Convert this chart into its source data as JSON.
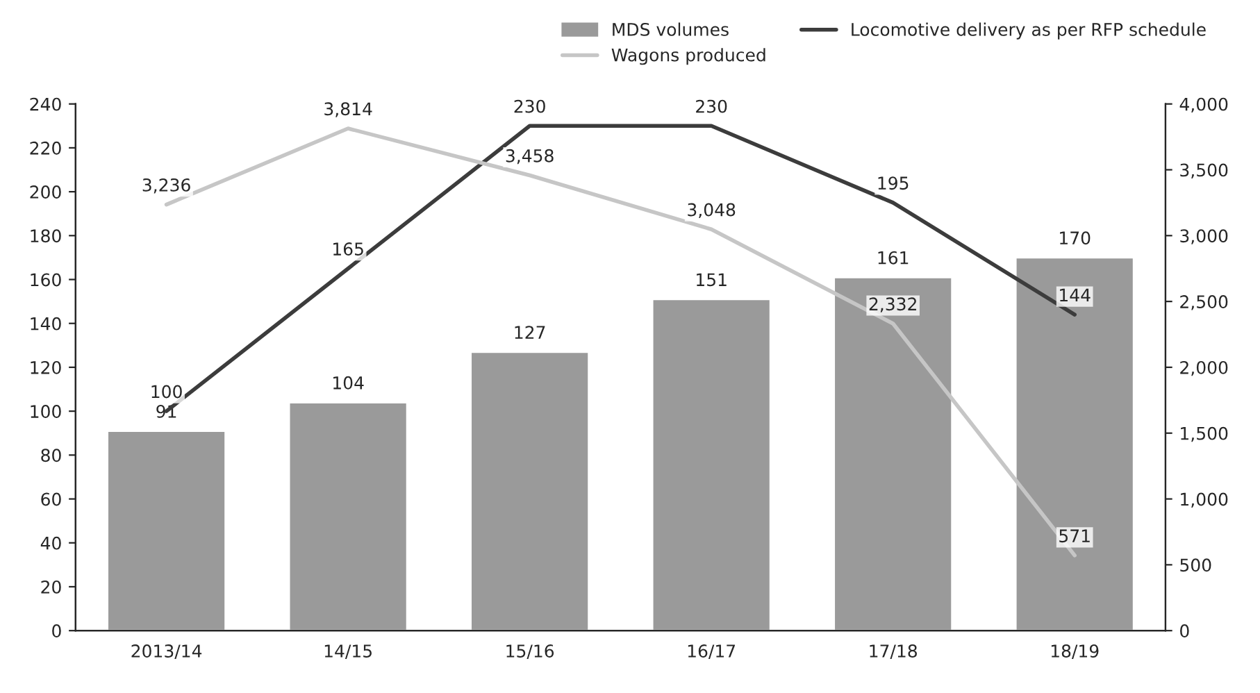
{
  "chart_data": {
    "type": "bar",
    "categories": [
      "2013/14",
      "14/15",
      "15/16",
      "16/17",
      "17/18",
      "18/19"
    ],
    "series": [
      {
        "name": "MDS volumes",
        "color": "#9a9a9a",
        "values": [
          91,
          104,
          127,
          151,
          161,
          170
        ]
      },
      {
        "name": "Locomotive delivery as per RFP schedule",
        "type": "line",
        "color": "#3c3c3c",
        "values": [
          100,
          165,
          230,
          230,
          195,
          144
        ]
      },
      {
        "name": "Wagons produced",
        "type": "line",
        "axis": "y2",
        "color": "#c6c6c6",
        "values": [
          3236,
          3814,
          3458,
          3048,
          2332,
          571
        ],
        "value_labels": [
          "3,236",
          "3,814",
          "3,458",
          "3,048",
          "2,332",
          "571"
        ]
      }
    ],
    "ylim": [
      0,
      240
    ],
    "yticks": [
      0,
      20,
      40,
      60,
      80,
      100,
      120,
      140,
      160,
      180,
      200,
      220,
      240
    ],
    "y2lim": [
      0,
      4000
    ],
    "y2ticks": [
      0,
      500,
      {
        "value": 1000,
        "label": "1,000"
      },
      {
        "value": 1500,
        "label": "1,500"
      },
      {
        "value": 2000,
        "label": "2,000"
      },
      {
        "value": 2500,
        "label": "2,500"
      },
      {
        "value": 3000,
        "label": "3,000"
      },
      {
        "value": 3500,
        "label": "3,500"
      },
      {
        "value": 4000,
        "label": "4,000"
      }
    ],
    "data_labels": true,
    "grid": false,
    "legend": "top right",
    "marker": "none",
    "line_style": "solid"
  }
}
